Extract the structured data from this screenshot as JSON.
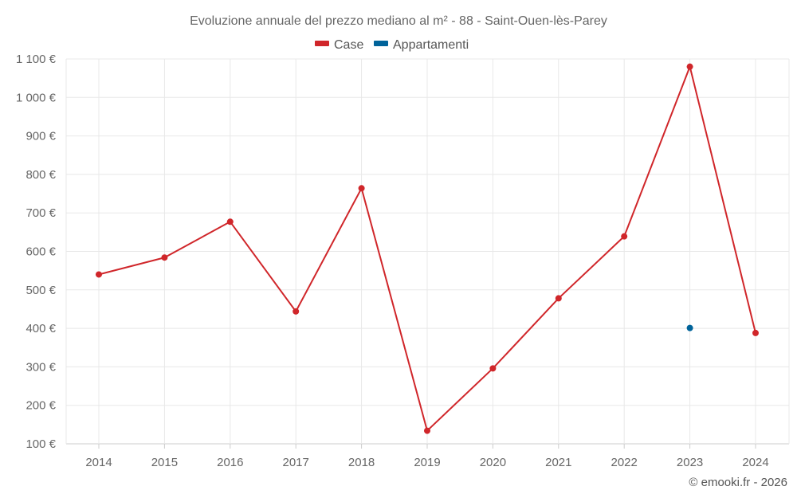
{
  "chart_data": {
    "type": "line",
    "title": "Evoluzione annuale del prezzo mediano al m² - 88 - Saint-Ouen-lès-Parey",
    "categories": [
      "2014",
      "2015",
      "2016",
      "2017",
      "2018",
      "2019",
      "2020",
      "2021",
      "2022",
      "2023",
      "2024"
    ],
    "series": [
      {
        "name": "Case",
        "color": "#d0262a",
        "values": [
          540,
          584,
          677,
          444,
          764,
          134,
          296,
          478,
          639,
          1080,
          388
        ]
      },
      {
        "name": "Appartamenti",
        "color": "#00639a",
        "values": [
          null,
          null,
          null,
          null,
          null,
          null,
          null,
          null,
          null,
          401,
          null
        ]
      }
    ],
    "y_ticks": [
      "100 €",
      "200 €",
      "300 €",
      "400 €",
      "500 €",
      "600 €",
      "700 €",
      "800 €",
      "900 €",
      "1 000 €",
      "1 100 €"
    ],
    "ylim": [
      100,
      1100
    ],
    "grid": true,
    "legend_position": "top-center",
    "xlabel": "",
    "ylabel": ""
  },
  "credit": "© emooki.fr - 2026"
}
